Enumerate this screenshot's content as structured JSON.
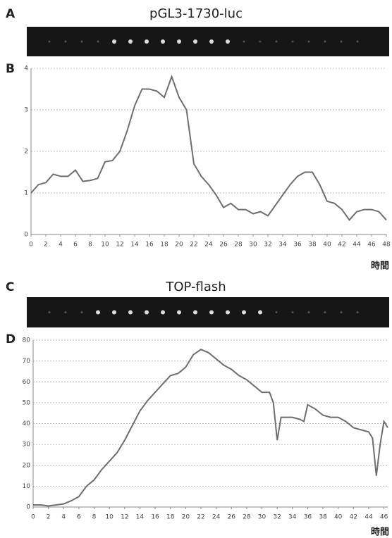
{
  "chart_data": [
    {
      "type": "line",
      "image_label": "A",
      "title": "pGL3-1730-luc",
      "plot_label": "B",
      "x_label": "時間",
      "color": "#6e6e6e",
      "grid": true,
      "x": [
        0,
        1,
        2,
        3,
        4,
        5,
        6,
        7,
        8,
        9,
        10,
        11,
        12,
        13,
        14,
        15,
        16,
        17,
        18,
        19,
        20,
        21,
        22,
        23,
        24,
        25,
        26,
        27,
        28,
        29,
        30,
        31,
        32,
        33,
        34,
        35,
        36,
        37,
        38,
        39,
        40,
        41,
        42,
        43,
        44,
        45,
        46,
        47,
        48
      ],
      "values": [
        1.0,
        1.2,
        1.25,
        1.45,
        1.4,
        1.4,
        1.55,
        1.28,
        1.3,
        1.35,
        1.75,
        1.78,
        2.0,
        2.5,
        3.1,
        3.5,
        3.5,
        3.45,
        3.3,
        3.8,
        3.3,
        3.0,
        1.7,
        1.4,
        1.2,
        0.95,
        0.65,
        0.75,
        0.6,
        0.6,
        0.5,
        0.55,
        0.45,
        0.7,
        0.95,
        1.2,
        1.4,
        1.5,
        1.5,
        1.2,
        0.8,
        0.75,
        0.6,
        0.35,
        0.55,
        0.6,
        0.6,
        0.55,
        0.35
      ],
      "xlim": [
        0,
        48
      ],
      "xticks": [
        0,
        2,
        4,
        6,
        8,
        10,
        12,
        14,
        16,
        18,
        20,
        22,
        24,
        26,
        28,
        30,
        32,
        34,
        36,
        38,
        40,
        42,
        44,
        46,
        48
      ],
      "ylim": [
        0,
        4
      ],
      "yticks": [
        0,
        1,
        2,
        3,
        4
      ]
    },
    {
      "type": "line",
      "image_label": "C",
      "title": "TOP-flash",
      "plot_label": "D",
      "x_label": "時間",
      "color": "#6e6e6e",
      "grid": true,
      "x": [
        0,
        1,
        2,
        3,
        4,
        5,
        6,
        7,
        8,
        9,
        10,
        11,
        12,
        13,
        14,
        15,
        16,
        17,
        18,
        19,
        20,
        21,
        22,
        23,
        24,
        25,
        26,
        27,
        28,
        29,
        30,
        31,
        31.5,
        32,
        32.5,
        33,
        34,
        35,
        35.5,
        36,
        37,
        38,
        39,
        40,
        41,
        42,
        43,
        44,
        44.5,
        45,
        45.5,
        46,
        46.5
      ],
      "values": [
        1,
        1,
        0.5,
        1,
        1.5,
        3,
        5,
        10,
        13,
        18,
        22,
        26,
        32,
        39,
        46,
        51,
        55,
        59,
        63,
        64,
        67,
        73,
        75.5,
        74,
        71,
        68,
        66,
        63,
        61,
        58,
        55,
        55,
        50,
        32,
        43,
        43,
        43,
        42,
        41,
        49,
        47,
        44,
        43,
        43,
        41,
        38,
        37,
        36,
        33,
        15,
        30,
        41,
        38
      ],
      "xlim": [
        0,
        46.5
      ],
      "xticks": [
        0,
        2,
        4,
        6,
        8,
        10,
        12,
        14,
        16,
        18,
        20,
        22,
        24,
        26,
        28,
        30,
        32,
        34,
        36,
        38,
        40,
        42,
        44,
        46
      ],
      "ylim": [
        0,
        80
      ],
      "yticks": [
        0,
        10,
        20,
        30,
        40,
        50,
        60,
        70,
        80
      ]
    }
  ]
}
